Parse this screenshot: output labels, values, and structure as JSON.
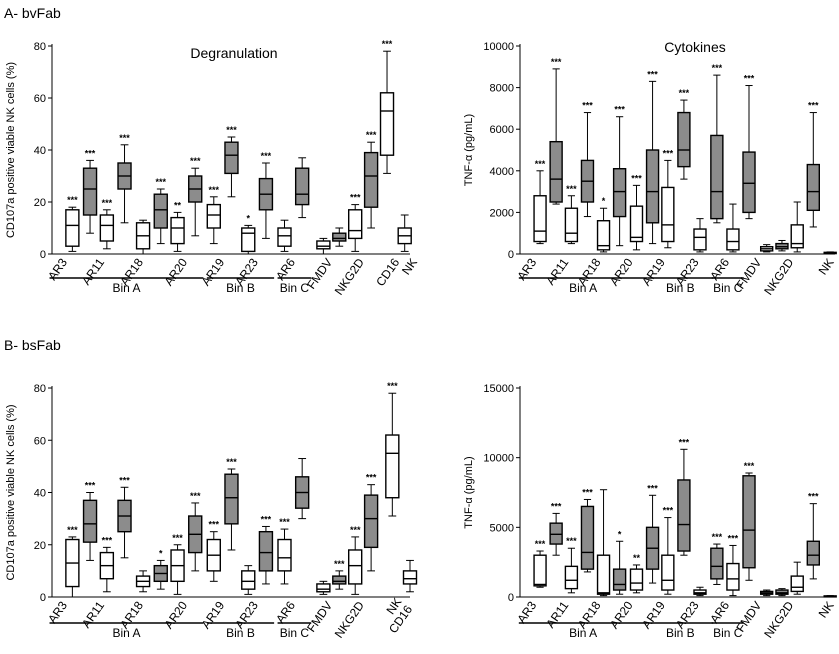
{
  "panels": [
    {
      "label": "A- bvFab"
    },
    {
      "label": "B- bsFab"
    }
  ],
  "colors": {
    "gray": "#8c8c8c",
    "white": "#ffffff",
    "line": "#000000"
  },
  "chart_data": [
    {
      "type": "box",
      "title": "Degranulation",
      "ylabel": "CD107a positive viable NK cells (%)",
      "ylim": [
        0,
        80
      ],
      "yticks": [
        0,
        20,
        40,
        60,
        80
      ],
      "categories": [
        "AR3",
        "AR11",
        "AR18",
        "AR20",
        "AR19",
        "AR23",
        "AR6",
        "FMDV",
        "NKG2D",
        "CD16",
        "NK"
      ],
      "groups": [
        {
          "label": "Bin A",
          "from": 0,
          "to": 3
        },
        {
          "label": "Bin B",
          "from": 4,
          "to": 5
        },
        {
          "label": "Bin C",
          "from": 6,
          "to": 6
        }
      ],
      "boxes": [
        {
          "min": 1,
          "q1": 3,
          "median": 11,
          "q3": 17,
          "max": 18,
          "fill": "white",
          "sig": "***"
        },
        {
          "min": 8,
          "q1": 15,
          "median": 25,
          "q3": 33,
          "max": 36,
          "fill": "gray",
          "sig": "***"
        },
        {
          "min": 2,
          "q1": 5,
          "median": 11,
          "q3": 15,
          "max": 17,
          "fill": "white",
          "sig": "***"
        },
        {
          "min": 12,
          "q1": 25,
          "median": 30,
          "q3": 35,
          "max": 42,
          "fill": "gray",
          "sig": "***"
        },
        {
          "min": 0,
          "q1": 2,
          "median": 7,
          "q3": 12,
          "max": 13,
          "fill": "white",
          "sig": ""
        },
        {
          "min": 4,
          "q1": 10,
          "median": 17,
          "q3": 23,
          "max": 25,
          "fill": "gray",
          "sig": "***"
        },
        {
          "min": 1,
          "q1": 4,
          "median": 10,
          "q3": 14,
          "max": 16,
          "fill": "white",
          "sig": "**"
        },
        {
          "min": 7,
          "q1": 20,
          "median": 25,
          "q3": 30,
          "max": 33,
          "fill": "gray",
          "sig": "***"
        },
        {
          "min": 4,
          "q1": 10,
          "median": 15,
          "q3": 19,
          "max": 22,
          "fill": "white",
          "sig": "***"
        },
        {
          "min": 22,
          "q1": 31,
          "median": 38,
          "q3": 43,
          "max": 45,
          "fill": "gray",
          "sig": "***"
        },
        {
          "min": 0,
          "q1": 1,
          "median": 8,
          "q3": 10,
          "max": 11,
          "fill": "white",
          "sig": "*"
        },
        {
          "min": 6,
          "q1": 17,
          "median": 23,
          "q3": 29,
          "max": 35,
          "fill": "gray",
          "sig": "***"
        },
        {
          "min": 1,
          "q1": 3,
          "median": 7,
          "q3": 10,
          "max": 13,
          "fill": "white",
          "sig": ""
        },
        {
          "min": 14,
          "q1": 19,
          "median": 23,
          "q3": 33,
          "max": 37,
          "fill": "gray",
          "sig": ""
        },
        {
          "min": 0,
          "q1": 2,
          "median": 3,
          "q3": 5,
          "max": 6,
          "fill": "white",
          "sig": ""
        },
        {
          "min": 3,
          "q1": 5,
          "median": 6,
          "q3": 8,
          "max": 10,
          "fill": "gray",
          "sig": ""
        },
        {
          "min": 1,
          "q1": 6,
          "median": 9,
          "q3": 17,
          "max": 19,
          "fill": "white",
          "sig": "***"
        },
        {
          "min": 10,
          "q1": 18,
          "median": 30,
          "q3": 39,
          "max": 43,
          "fill": "gray",
          "sig": "***"
        },
        {
          "min": 31,
          "q1": 38,
          "median": 55,
          "q3": 62,
          "max": 78,
          "fill": "white",
          "sig": "***"
        },
        {
          "min": 1,
          "q1": 4,
          "median": 7,
          "q3": 10,
          "max": 15,
          "fill": "white",
          "sig": ""
        }
      ]
    },
    {
      "type": "box",
      "title": "Cytokines",
      "ylabel": "TNF-α (pg/mL)",
      "ylim": [
        0,
        10000
      ],
      "yticks": [
        0,
        2000,
        4000,
        6000,
        8000,
        10000
      ],
      "categories": [
        "AR3",
        "AR11",
        "AR18",
        "AR20",
        "AR19",
        "AR23",
        "AR6",
        "FMDV",
        "NKG2D",
        "NK"
      ],
      "groups": [
        {
          "label": "Bin A",
          "from": 0,
          "to": 3
        },
        {
          "label": "Bin B",
          "from": 4,
          "to": 5
        },
        {
          "label": "Bin C",
          "from": 6,
          "to": 6
        }
      ],
      "boxes": [
        {
          "min": 500,
          "q1": 600,
          "median": 1100,
          "q3": 2800,
          "max": 4000,
          "fill": "white",
          "sig": "***"
        },
        {
          "min": 2400,
          "q1": 2500,
          "median": 3600,
          "q3": 5400,
          "max": 8900,
          "fill": "gray",
          "sig": "***"
        },
        {
          "min": 500,
          "q1": 600,
          "median": 1000,
          "q3": 2200,
          "max": 2800,
          "fill": "white",
          "sig": "***"
        },
        {
          "min": 1800,
          "q1": 2500,
          "median": 3500,
          "q3": 4500,
          "max": 6800,
          "fill": "gray",
          "sig": "***"
        },
        {
          "min": 100,
          "q1": 200,
          "median": 400,
          "q3": 1600,
          "max": 2200,
          "fill": "white",
          "sig": "*"
        },
        {
          "min": 400,
          "q1": 1800,
          "median": 3000,
          "q3": 4100,
          "max": 6600,
          "fill": "gray",
          "sig": "***"
        },
        {
          "min": 200,
          "q1": 600,
          "median": 800,
          "q3": 2300,
          "max": 3300,
          "fill": "white",
          "sig": "***"
        },
        {
          "min": 500,
          "q1": 1500,
          "median": 3000,
          "q3": 5000,
          "max": 8300,
          "fill": "gray",
          "sig": "***"
        },
        {
          "min": 300,
          "q1": 600,
          "median": 1400,
          "q3": 3200,
          "max": 4500,
          "fill": "white",
          "sig": "***"
        },
        {
          "min": 3600,
          "q1": 4200,
          "median": 5000,
          "q3": 6800,
          "max": 7400,
          "fill": "gray",
          "sig": "***"
        },
        {
          "min": 100,
          "q1": 200,
          "median": 800,
          "q3": 1200,
          "max": 1700,
          "fill": "white",
          "sig": ""
        },
        {
          "min": 1500,
          "q1": 1700,
          "median": 3000,
          "q3": 5700,
          "max": 8600,
          "fill": "gray",
          "sig": "***"
        },
        {
          "min": 100,
          "q1": 200,
          "median": 600,
          "q3": 1200,
          "max": 2400,
          "fill": "white",
          "sig": ""
        },
        {
          "min": 1700,
          "q1": 2000,
          "median": 3400,
          "q3": 4900,
          "max": 8100,
          "fill": "gray",
          "sig": "***"
        },
        {
          "min": 100,
          "q1": 150,
          "median": 250,
          "q3": 350,
          "max": 450,
          "fill": "white",
          "sig": ""
        },
        {
          "min": 150,
          "q1": 250,
          "median": 350,
          "q3": 500,
          "max": 650,
          "fill": "gray",
          "sig": ""
        },
        {
          "min": 100,
          "q1": 300,
          "median": 500,
          "q3": 1400,
          "max": 2500,
          "fill": "white",
          "sig": ""
        },
        {
          "min": 1300,
          "q1": 2100,
          "median": 3000,
          "q3": 4300,
          "max": 6800,
          "fill": "gray",
          "sig": "***"
        },
        {
          "min": 0,
          "q1": 20,
          "median": 50,
          "q3": 80,
          "max": 100,
          "fill": "white",
          "sig": ""
        }
      ]
    },
    {
      "type": "box",
      "title": "",
      "ylabel": "CD107a positive viable NK cells (%)",
      "ylim": [
        0,
        80
      ],
      "yticks": [
        0,
        20,
        40,
        60,
        80
      ],
      "categories": [
        "AR3",
        "AR11",
        "AR18",
        "AR20",
        "AR19",
        "AR23",
        "AR6",
        "FMDV",
        "NKG2D",
        "NK CD16"
      ],
      "groups": [
        {
          "label": "Bin A",
          "from": 0,
          "to": 3
        },
        {
          "label": "Bin B",
          "from": 4,
          "to": 5
        },
        {
          "label": "Bin C",
          "from": 6,
          "to": 6
        }
      ],
      "boxes": [
        {
          "min": 0,
          "q1": 4,
          "median": 13,
          "q3": 22,
          "max": 23,
          "fill": "white",
          "sig": "***"
        },
        {
          "min": 14,
          "q1": 21,
          "median": 28,
          "q3": 37,
          "max": 40,
          "fill": "gray",
          "sig": "***"
        },
        {
          "min": 2,
          "q1": 7,
          "median": 12,
          "q3": 17,
          "max": 19,
          "fill": "white",
          "sig": "***"
        },
        {
          "min": 15,
          "q1": 25,
          "median": 31,
          "q3": 37,
          "max": 42,
          "fill": "gray",
          "sig": "***"
        },
        {
          "min": 2,
          "q1": 4,
          "median": 6,
          "q3": 8,
          "max": 10,
          "fill": "white",
          "sig": ""
        },
        {
          "min": 3,
          "q1": 6,
          "median": 9,
          "q3": 12,
          "max": 14,
          "fill": "gray",
          "sig": "*"
        },
        {
          "min": 1,
          "q1": 6,
          "median": 12,
          "q3": 18,
          "max": 20,
          "fill": "white",
          "sig": "***"
        },
        {
          "min": 10,
          "q1": 17,
          "median": 24,
          "q3": 31,
          "max": 36,
          "fill": "gray",
          "sig": "***"
        },
        {
          "min": 6,
          "q1": 10,
          "median": 16,
          "q3": 22,
          "max": 25,
          "fill": "white",
          "sig": "***"
        },
        {
          "min": 18,
          "q1": 28,
          "median": 38,
          "q3": 47,
          "max": 49,
          "fill": "gray",
          "sig": "***"
        },
        {
          "min": 1,
          "q1": 3,
          "median": 6,
          "q3": 10,
          "max": 12,
          "fill": "white",
          "sig": ""
        },
        {
          "min": 5,
          "q1": 10,
          "median": 17,
          "q3": 25,
          "max": 27,
          "fill": "gray",
          "sig": "***"
        },
        {
          "min": 5,
          "q1": 10,
          "median": 15,
          "q3": 22,
          "max": 26,
          "fill": "white",
          "sig": "***"
        },
        {
          "min": 30,
          "q1": 34,
          "median": 40,
          "q3": 46,
          "max": 53,
          "fill": "gray",
          "sig": ""
        },
        {
          "min": 1,
          "q1": 2,
          "median": 3,
          "q3": 5,
          "max": 6,
          "fill": "white",
          "sig": ""
        },
        {
          "min": 3,
          "q1": 5,
          "median": 6,
          "q3": 8,
          "max": 10,
          "fill": "gray",
          "sig": "***"
        },
        {
          "min": 1,
          "q1": 5,
          "median": 12,
          "q3": 18,
          "max": 23,
          "fill": "white",
          "sig": "***"
        },
        {
          "min": 10,
          "q1": 19,
          "median": 30,
          "q3": 39,
          "max": 43,
          "fill": "gray",
          "sig": "***"
        },
        {
          "min": 31,
          "q1": 38,
          "median": 55,
          "q3": 62,
          "max": 78,
          "fill": "white",
          "sig": "***"
        },
        {
          "min": 2,
          "q1": 5,
          "median": 7,
          "q3": 10,
          "max": 14,
          "fill": "white",
          "sig": ""
        }
      ]
    },
    {
      "type": "box",
      "title": "",
      "ylabel": "TNF-α (pg/mL)",
      "ylim": [
        0,
        15000
      ],
      "yticks": [
        0,
        5000,
        10000,
        15000
      ],
      "categories": [
        "AR3",
        "AR11",
        "AR18",
        "AR20",
        "AR19",
        "AR23",
        "AR6",
        "FMDV",
        "NKG2D",
        "NK"
      ],
      "groups": [
        {
          "label": "Bin A",
          "from": 0,
          "to": 3
        },
        {
          "label": "Bin B",
          "from": 4,
          "to": 5
        },
        {
          "label": "Bin C",
          "from": 6,
          "to": 6
        }
      ],
      "boxes": [
        {
          "min": 700,
          "q1": 800,
          "median": 900,
          "q3": 3000,
          "max": 3300,
          "fill": "white",
          "sig": "***"
        },
        {
          "min": 3000,
          "q1": 3800,
          "median": 4500,
          "q3": 5300,
          "max": 6000,
          "fill": "gray",
          "sig": "***"
        },
        {
          "min": 300,
          "q1": 600,
          "median": 1200,
          "q3": 2200,
          "max": 3500,
          "fill": "white",
          "sig": "***"
        },
        {
          "min": 1800,
          "q1": 2000,
          "median": 3200,
          "q3": 6500,
          "max": 7000,
          "fill": "gray",
          "sig": "***"
        },
        {
          "min": 100,
          "q1": 200,
          "median": 300,
          "q3": 3000,
          "max": 7700,
          "fill": "white",
          "sig": ""
        },
        {
          "min": 200,
          "q1": 500,
          "median": 900,
          "q3": 2000,
          "max": 4000,
          "fill": "gray",
          "sig": "*"
        },
        {
          "min": 300,
          "q1": 500,
          "median": 1000,
          "q3": 2000,
          "max": 2300,
          "fill": "white",
          "sig": "**"
        },
        {
          "min": 1000,
          "q1": 2000,
          "median": 3500,
          "q3": 5000,
          "max": 7300,
          "fill": "gray",
          "sig": "***"
        },
        {
          "min": 200,
          "q1": 500,
          "median": 1200,
          "q3": 3000,
          "max": 5700,
          "fill": "white",
          "sig": "***"
        },
        {
          "min": 3000,
          "q1": 3300,
          "median": 5200,
          "q3": 8400,
          "max": 10600,
          "fill": "gray",
          "sig": "***"
        },
        {
          "min": 100,
          "q1": 200,
          "median": 300,
          "q3": 500,
          "max": 700,
          "fill": "white",
          "sig": ""
        },
        {
          "min": 900,
          "q1": 1300,
          "median": 2200,
          "q3": 3500,
          "max": 3800,
          "fill": "gray",
          "sig": "***"
        },
        {
          "min": 100,
          "q1": 500,
          "median": 1300,
          "q3": 2400,
          "max": 3700,
          "fill": "white",
          "sig": "***"
        },
        {
          "min": 1200,
          "q1": 2100,
          "median": 4800,
          "q3": 8700,
          "max": 8900,
          "fill": "gray",
          "sig": "***"
        },
        {
          "min": 100,
          "q1": 200,
          "median": 300,
          "q3": 400,
          "max": 500,
          "fill": "white",
          "sig": ""
        },
        {
          "min": 100,
          "q1": 200,
          "median": 300,
          "q3": 500,
          "max": 600,
          "fill": "gray",
          "sig": ""
        },
        {
          "min": 200,
          "q1": 400,
          "median": 700,
          "q3": 1500,
          "max": 2500,
          "fill": "white",
          "sig": ""
        },
        {
          "min": 1300,
          "q1": 2300,
          "median": 3000,
          "q3": 4000,
          "max": 6700,
          "fill": "gray",
          "sig": "***"
        },
        {
          "min": 0,
          "q1": 20,
          "median": 50,
          "q3": 80,
          "max": 100,
          "fill": "white",
          "sig": ""
        }
      ]
    }
  ]
}
